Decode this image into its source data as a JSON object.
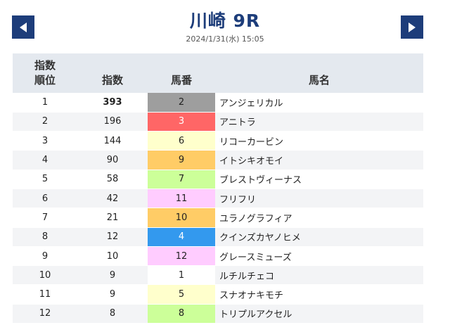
{
  "header": {
    "title": "川崎 9R",
    "datetime": "2024/1/31(水) 15:05"
  },
  "nav": {
    "prev_icon": "arrow-left-icon",
    "next_icon": "arrow-right-icon"
  },
  "colors": {
    "nav_bg": "#1d3d7a",
    "header_bg": "#e4e9ef",
    "title": "#1d3d7a"
  },
  "table": {
    "headers": {
      "rank_line1": "指数",
      "rank_line2": "順位",
      "index": "指数",
      "number": "馬番",
      "name": "馬名"
    },
    "rows": [
      {
        "rank": "1",
        "index": "393",
        "number": "2",
        "name": "アンジェリカル",
        "bg": "#9e9e9e",
        "fg": "#222222"
      },
      {
        "rank": "2",
        "index": "196",
        "number": "3",
        "name": "アニトラ",
        "bg": "#ff6666",
        "fg": "#ffffff"
      },
      {
        "rank": "3",
        "index": "144",
        "number": "6",
        "name": "リコーカービン",
        "bg": "#ffffcc",
        "fg": "#222222"
      },
      {
        "rank": "4",
        "index": "90",
        "number": "9",
        "name": "イトシキオモイ",
        "bg": "#ffcc66",
        "fg": "#222222"
      },
      {
        "rank": "5",
        "index": "58",
        "number": "7",
        "name": "ブレストヴィーナス",
        "bg": "#ccff99",
        "fg": "#222222"
      },
      {
        "rank": "6",
        "index": "42",
        "number": "11",
        "name": "フリフリ",
        "bg": "#ffccff",
        "fg": "#222222"
      },
      {
        "rank": "7",
        "index": "21",
        "number": "10",
        "name": "ユラノグラフィア",
        "bg": "#ffcc66",
        "fg": "#222222"
      },
      {
        "rank": "8",
        "index": "12",
        "number": "4",
        "name": "クインズカヤノヒメ",
        "bg": "#3399ee",
        "fg": "#ffffff"
      },
      {
        "rank": "9",
        "index": "10",
        "number": "12",
        "name": "グレースミューズ",
        "bg": "#ffccff",
        "fg": "#222222"
      },
      {
        "rank": "10",
        "index": "9",
        "number": "1",
        "name": "ルチルチェコ",
        "bg": "#ffffff",
        "fg": "#222222"
      },
      {
        "rank": "11",
        "index": "9",
        "number": "5",
        "name": "スナオナキモチ",
        "bg": "#ffffcc",
        "fg": "#222222"
      },
      {
        "rank": "12",
        "index": "8",
        "number": "8",
        "name": "トリプルアクセル",
        "bg": "#ccff99",
        "fg": "#222222"
      }
    ]
  }
}
